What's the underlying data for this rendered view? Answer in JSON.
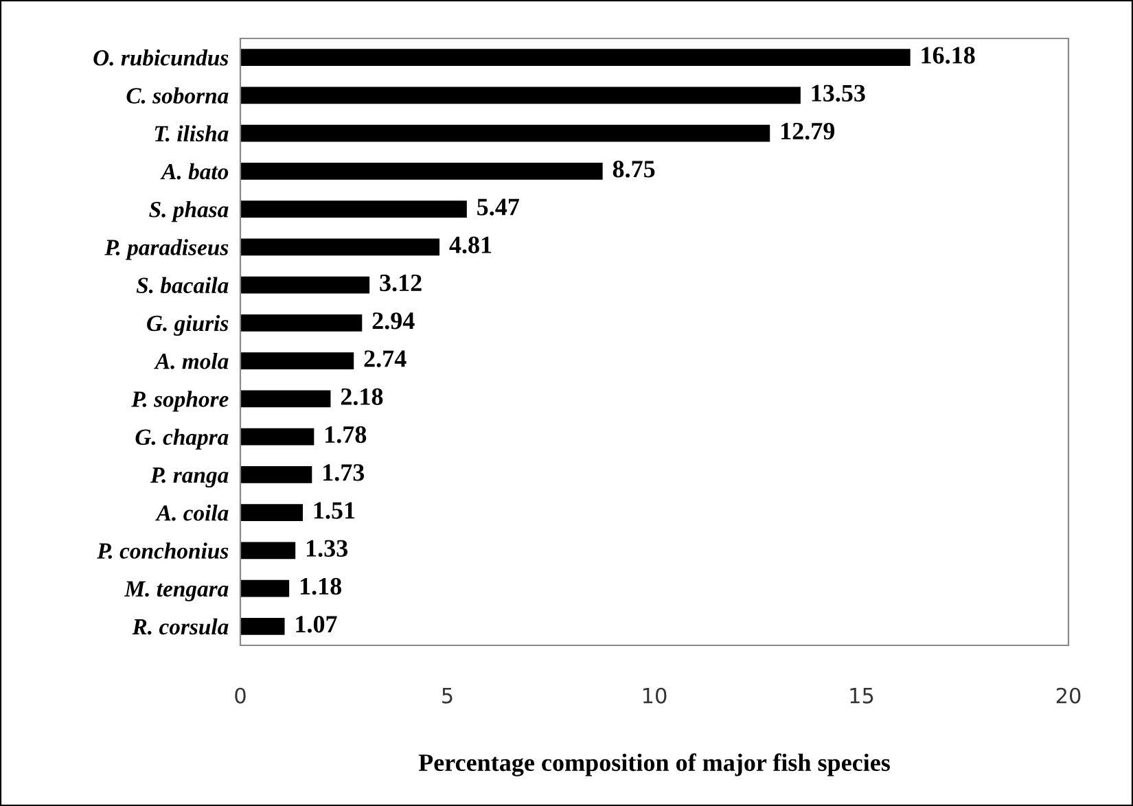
{
  "chart_data": {
    "type": "bar",
    "orientation": "horizontal",
    "xlabel": "Percentage composition of major fish species",
    "categories": [
      "O. rubicundus",
      "C. soborna",
      "T. ilisha",
      "A. bato",
      "S. phasa",
      "P. paradiseus",
      "S. bacaila",
      "G. giuris",
      "A. mola",
      "P. sophore",
      "G. chapra",
      "P. ranga",
      "A. coila",
      "P. conchonius",
      "M. tengara",
      "R. corsula"
    ],
    "values": [
      16.18,
      13.53,
      12.79,
      8.75,
      5.47,
      4.81,
      3.12,
      2.94,
      2.74,
      2.18,
      1.78,
      1.73,
      1.51,
      1.33,
      1.18,
      1.07
    ],
    "color": "#000000",
    "xlim": [
      0,
      20
    ],
    "xticks": [
      0,
      5,
      10,
      15,
      20
    ],
    "data_labels": true,
    "grid": false,
    "legend": false
  }
}
